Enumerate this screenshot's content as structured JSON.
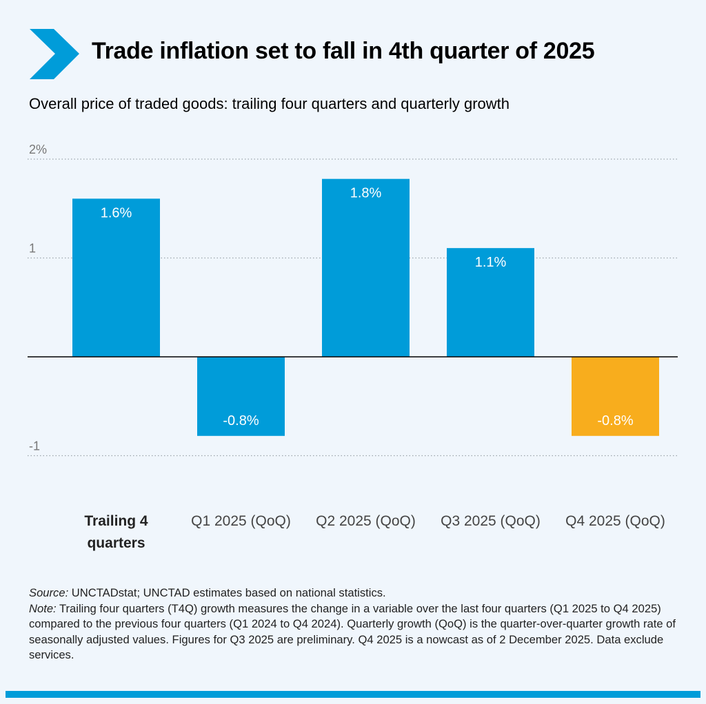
{
  "title": "Trade inflation set to fall in 4th quarter of 2025",
  "subtitle": "Overall price of traded goods: trailing four quarters and quarterly growth",
  "colors": {
    "bar": "#009cd9",
    "highlight": "#f8ad1d",
    "logo": "#009cd9",
    "background": "#f0f6fc"
  },
  "logo_icon": "chevron-right-icon",
  "chart_data": {
    "type": "bar",
    "categories": [
      "Trailing 4 quarters",
      "Q1 2025 (QoQ)",
      "Q2 2025 (QoQ)",
      "Q3 2025 (QoQ)",
      "Q4 2025 (QoQ)"
    ],
    "category_bold": [
      true,
      false,
      false,
      false,
      false
    ],
    "values": [
      1.6,
      -0.8,
      1.8,
      1.1,
      -0.8
    ],
    "data_labels": [
      "1.6%",
      "-0.8%",
      "1.8%",
      "1.1%",
      "-0.8%"
    ],
    "highlighted": [
      false,
      false,
      false,
      false,
      true
    ],
    "yticks": [
      {
        "value": 2,
        "label": "2%"
      },
      {
        "value": 1,
        "label": "1"
      },
      {
        "value": -1,
        "label": "-1"
      }
    ],
    "ylim": [
      -1,
      2
    ],
    "grid": "dotted horizontal",
    "zero_line": true,
    "xlabel": "",
    "ylabel": ""
  },
  "footer": {
    "source_label": "Source:",
    "source_text": " UNCTADstat; UNCTAD estimates based on national statistics.",
    "note_label": "Note:",
    "note_text": " Trailing four quarters (T4Q) growth measures the change in a variable over the last four quarters (Q1 2025 to Q4 2025) compared to the previous four quarters (Q1 2024 to Q4 2024). Quarterly growth (QoQ) is the quarter-over-quarter growth rate of seasonally adjusted values. Figures for Q3 2025 are preliminary. Q4 2025 is a nowcast as of 2 December 2025. Data exclude services."
  }
}
